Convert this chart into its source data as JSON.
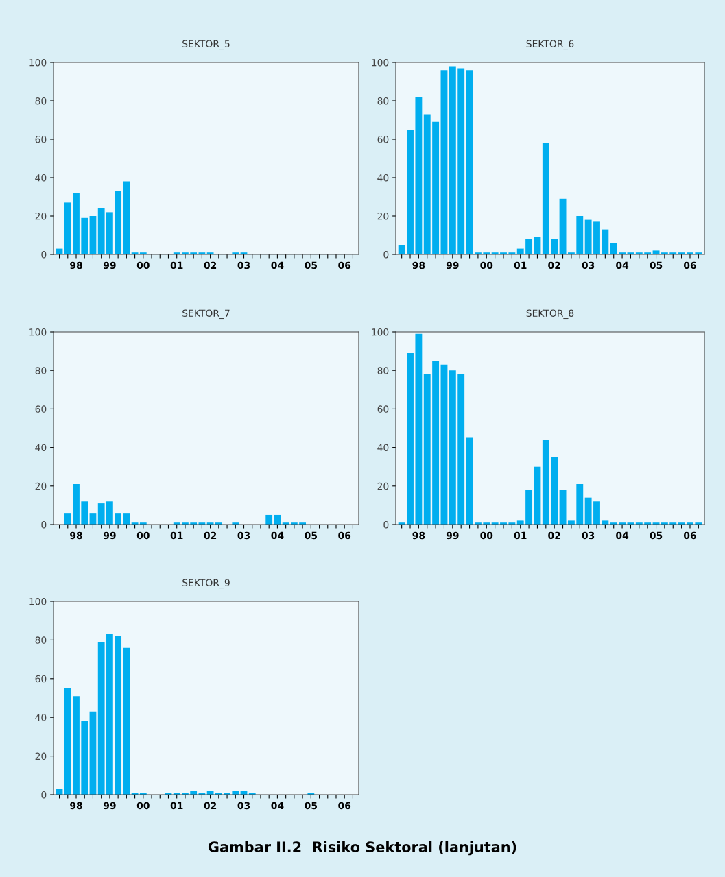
{
  "chart_data": [
    {
      "type": "bar",
      "title": "SEKTOR_5",
      "categories": [
        null,
        null,
        "98",
        null,
        null,
        null,
        "99",
        null,
        null,
        null,
        "00",
        null,
        null,
        null,
        "01",
        null,
        null,
        null,
        "02",
        null,
        null,
        null,
        "03",
        null,
        null,
        null,
        "04",
        null,
        null,
        null,
        "05",
        null,
        null,
        null,
        "06",
        null
      ],
      "color": "#00aeef",
      "values": [
        3,
        27,
        32,
        19,
        20,
        24,
        22,
        33,
        38,
        1,
        1,
        0,
        0,
        0,
        1,
        1,
        1,
        1,
        1,
        0,
        0,
        1,
        1,
        0,
        0,
        0,
        0,
        0,
        0,
        0,
        0,
        0,
        0,
        0,
        0,
        0
      ],
      "ylim": [
        0,
        100
      ],
      "yticks": [
        0,
        20,
        40,
        60,
        80,
        100
      ],
      "grid": false,
      "legend": false
    },
    {
      "type": "bar",
      "title": "SEKTOR_6",
      "categories": [
        null,
        null,
        "98",
        null,
        null,
        null,
        "99",
        null,
        null,
        null,
        "00",
        null,
        null,
        null,
        "01",
        null,
        null,
        null,
        "02",
        null,
        null,
        null,
        "03",
        null,
        null,
        null,
        "04",
        null,
        null,
        null,
        "05",
        null,
        null,
        null,
        "06",
        null
      ],
      "color": "#00aeef",
      "values": [
        5,
        65,
        82,
        73,
        69,
        96,
        98,
        97,
        96,
        1,
        1,
        1,
        1,
        1,
        3,
        8,
        9,
        58,
        8,
        29,
        1,
        20,
        18,
        17,
        13,
        6,
        1,
        1,
        1,
        1,
        2,
        1,
        1,
        1,
        1,
        1
      ],
      "ylim": [
        0,
        100
      ],
      "yticks": [
        0,
        20,
        40,
        60,
        80,
        100
      ],
      "grid": false,
      "legend": false
    },
    {
      "type": "bar",
      "title": "SEKTOR_7",
      "categories": [
        null,
        null,
        "98",
        null,
        null,
        null,
        "99",
        null,
        null,
        null,
        "00",
        null,
        null,
        null,
        "01",
        null,
        null,
        null,
        "02",
        null,
        null,
        null,
        "03",
        null,
        null,
        null,
        "04",
        null,
        null,
        null,
        "05",
        null,
        null,
        null,
        "06",
        null
      ],
      "color": "#00aeef",
      "values": [
        0,
        6,
        21,
        12,
        6,
        11,
        12,
        6,
        6,
        1,
        1,
        0,
        0,
        0,
        1,
        1,
        1,
        1,
        1,
        1,
        0,
        1,
        0,
        0,
        0,
        5,
        5,
        1,
        1,
        1,
        0,
        0,
        0,
        0,
        0,
        0
      ],
      "ylim": [
        0,
        100
      ],
      "yticks": [
        0,
        20,
        40,
        60,
        80,
        100
      ],
      "grid": false,
      "legend": false
    },
    {
      "type": "bar",
      "title": "SEKTOR_8",
      "categories": [
        null,
        null,
        "98",
        null,
        null,
        null,
        "99",
        null,
        null,
        null,
        "00",
        null,
        null,
        null,
        "01",
        null,
        null,
        null,
        "02",
        null,
        null,
        null,
        "03",
        null,
        null,
        null,
        "04",
        null,
        null,
        null,
        "05",
        null,
        null,
        null,
        "06",
        null
      ],
      "color": "#00aeef",
      "values": [
        1,
        89,
        99,
        78,
        85,
        83,
        80,
        78,
        45,
        1,
        1,
        1,
        1,
        1,
        2,
        18,
        30,
        44,
        35,
        18,
        2,
        21,
        14,
        12,
        2,
        1,
        1,
        1,
        1,
        1,
        1,
        1,
        1,
        1,
        1,
        1
      ],
      "ylim": [
        0,
        100
      ],
      "yticks": [
        0,
        20,
        40,
        60,
        80,
        100
      ],
      "grid": false,
      "legend": false
    },
    {
      "type": "bar",
      "title": "SEKTOR_9",
      "categories": [
        null,
        null,
        "98",
        null,
        null,
        null,
        "99",
        null,
        null,
        null,
        "00",
        null,
        null,
        null,
        "01",
        null,
        null,
        null,
        "02",
        null,
        null,
        null,
        "03",
        null,
        null,
        null,
        "04",
        null,
        null,
        null,
        "05",
        null,
        null,
        null,
        "06",
        null
      ],
      "color": "#00aeef",
      "values": [
        3,
        55,
        51,
        38,
        43,
        79,
        83,
        82,
        76,
        1,
        1,
        0,
        0,
        1,
        1,
        1,
        2,
        1,
        2,
        1,
        1,
        2,
        2,
        1,
        0,
        0,
        0,
        0,
        0,
        0,
        1,
        0,
        0,
        0,
        0,
        0
      ],
      "ylim": [
        0,
        100
      ],
      "yticks": [
        0,
        20,
        40,
        60,
        80,
        100
      ],
      "grid": false,
      "legend": false,
      "annotations": [
        "Gambar II.2  Risiko Sektoral (lanjutan)"
      ]
    }
  ]
}
